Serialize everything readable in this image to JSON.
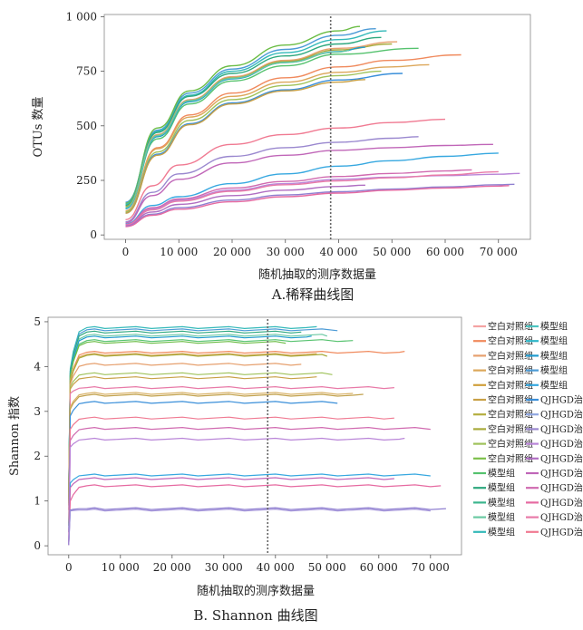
{
  "chart_data": [
    {
      "type": "line",
      "title": "",
      "caption": "A.稀释曲线图",
      "xlabel": "随机抽取的测序数据量",
      "ylabel": "OTUs 数量",
      "xlim": [
        -4000,
        76000
      ],
      "ylim": [
        -20,
        1010
      ],
      "xticks": [
        0,
        10000,
        20000,
        30000,
        40000,
        50000,
        60000,
        70000
      ],
      "xtick_labels": [
        "0",
        "10 000",
        "20 000",
        "30 000",
        "40 000",
        "50 000",
        "60 000",
        "70 000"
      ],
      "yticks": [
        0,
        250,
        500,
        750,
        1000
      ],
      "ytick_labels": [
        "0",
        "250",
        "500",
        "750",
        "1 000"
      ],
      "grid": false,
      "legend": "none",
      "vline": 38500,
      "series": [
        {
          "color": "#4c9bd6",
          "x": [
            0,
            6000,
            12000,
            20000,
            30000,
            40000,
            47000
          ],
          "y": [
            150,
            480,
            650,
            760,
            850,
            915,
            945
          ]
        },
        {
          "color": "#6bbd45",
          "x": [
            0,
            6000,
            12000,
            20000,
            30000,
            40000,
            44000
          ],
          "y": [
            145,
            490,
            660,
            775,
            870,
            935,
            955
          ]
        },
        {
          "color": "#34b9b9",
          "x": [
            0,
            6000,
            12000,
            20000,
            30000,
            40000,
            49000
          ],
          "y": [
            140,
            475,
            640,
            750,
            835,
            895,
            935
          ]
        },
        {
          "color": "#2ea87e",
          "x": [
            0,
            6000,
            12000,
            20000,
            30000,
            40000,
            48000
          ],
          "y": [
            135,
            470,
            635,
            740,
            820,
            875,
            905
          ]
        },
        {
          "color": "#e6a06e",
          "x": [
            0,
            6000,
            12000,
            20000,
            30000,
            40000,
            51000
          ],
          "y": [
            130,
            460,
            620,
            725,
            800,
            855,
            885
          ]
        },
        {
          "color": "#a8ab3c",
          "x": [
            0,
            6000,
            12000,
            20000,
            30000,
            40000,
            50000
          ],
          "y": [
            130,
            455,
            615,
            720,
            795,
            848,
            875
          ]
        },
        {
          "color": "#55c26e",
          "x": [
            0,
            6000,
            12000,
            20000,
            30000,
            40000,
            55000
          ],
          "y": [
            125,
            440,
            600,
            705,
            775,
            828,
            855
          ]
        },
        {
          "color": "#1f9bcf",
          "x": [
            0,
            6000,
            12000,
            20000,
            30000,
            40000,
            45000
          ],
          "y": [
            120,
            450,
            610,
            715,
            790,
            840,
            860
          ]
        },
        {
          "color": "#6ac9a2",
          "x": [
            0,
            6000,
            12000,
            20000,
            30000,
            40000,
            42000
          ],
          "y": [
            125,
            455,
            615,
            718,
            790,
            838,
            845
          ]
        },
        {
          "color": "#f08a5d",
          "x": [
            0,
            6000,
            12000,
            20000,
            30000,
            40000,
            50000,
            63000
          ],
          "y": [
            110,
            400,
            550,
            650,
            720,
            770,
            800,
            825
          ]
        },
        {
          "color": "#dca75a",
          "x": [
            0,
            6000,
            12000,
            20000,
            30000,
            40000,
            50000,
            57000
          ],
          "y": [
            110,
            395,
            540,
            635,
            700,
            745,
            770,
            780
          ]
        },
        {
          "color": "#9fc25a",
          "x": [
            0,
            6000,
            12000,
            20000,
            30000,
            40000,
            48000
          ],
          "y": [
            105,
            380,
            525,
            620,
            685,
            730,
            750
          ]
        },
        {
          "color": "#3a8fd9",
          "x": [
            0,
            6000,
            12000,
            20000,
            30000,
            40000,
            52000
          ],
          "y": [
            100,
            370,
            510,
            605,
            665,
            710,
            740
          ]
        },
        {
          "color": "#c8a046",
          "x": [
            0,
            6000,
            12000,
            20000,
            30000,
            40000,
            45000
          ],
          "y": [
            100,
            365,
            505,
            600,
            660,
            700,
            712
          ]
        },
        {
          "color": "#f07a92",
          "x": [
            0,
            5000,
            10000,
            20000,
            30000,
            40000,
            50000,
            60000
          ],
          "y": [
            70,
            225,
            320,
            415,
            460,
            490,
            515,
            530
          ]
        },
        {
          "color": "#9a88cf",
          "x": [
            0,
            5000,
            10000,
            20000,
            30000,
            40000,
            50000,
            55000
          ],
          "y": [
            60,
            195,
            280,
            360,
            400,
            425,
            443,
            450
          ]
        },
        {
          "color": "#c066b8",
          "x": [
            0,
            5000,
            10000,
            20000,
            30000,
            40000,
            50000,
            60000,
            69000
          ],
          "y": [
            55,
            180,
            255,
            330,
            365,
            388,
            400,
            410,
            415
          ]
        },
        {
          "color": "#37a8e0",
          "x": [
            0,
            5000,
            10000,
            20000,
            30000,
            40000,
            50000,
            60000,
            70000
          ],
          "y": [
            50,
            135,
            175,
            235,
            280,
            315,
            340,
            360,
            375
          ]
        },
        {
          "color": "#b985d8",
          "x": [
            0,
            5000,
            10000,
            20000,
            30000,
            40000,
            50000,
            60000,
            70000,
            74000
          ],
          "y": [
            45,
            120,
            160,
            205,
            235,
            255,
            265,
            272,
            278,
            282
          ]
        },
        {
          "color": "#d06ab0",
          "x": [
            0,
            5000,
            10000,
            20000,
            30000,
            40000,
            50000,
            60000,
            65000
          ],
          "y": [
            48,
            125,
            165,
            215,
            245,
            268,
            282,
            293,
            298
          ]
        },
        {
          "color": "#e87aa8",
          "x": [
            0,
            5000,
            10000,
            20000,
            30000,
            40000,
            50000,
            60000,
            70000
          ],
          "y": [
            45,
            115,
            155,
            200,
            230,
            248,
            262,
            275,
            290
          ]
        },
        {
          "color": "#8f7fd0",
          "x": [
            0,
            5000,
            10000,
            20000,
            30000,
            40000,
            50000,
            60000,
            70000,
            73000
          ],
          "y": [
            40,
            95,
            125,
            160,
            183,
            198,
            210,
            220,
            230,
            232
          ]
        },
        {
          "color": "#e66aa1",
          "x": [
            0,
            5000,
            10000,
            20000,
            30000,
            40000,
            50000,
            60000,
            70000,
            72000
          ],
          "y": [
            38,
            90,
            118,
            152,
            175,
            192,
            205,
            215,
            224,
            226
          ]
        },
        {
          "color": "#b06ec2",
          "x": [
            0,
            5000,
            10000,
            20000,
            30000,
            40000,
            45000
          ],
          "y": [
            42,
            105,
            140,
            180,
            205,
            222,
            228
          ]
        }
      ]
    },
    {
      "type": "line",
      "title": "",
      "caption": "B. Shannon 曲线图",
      "xlabel": "随机抽取的测序数据量",
      "ylabel": "Shannon 指数",
      "xlim": [
        -4000,
        76000
      ],
      "ylim": [
        -0.2,
        5.1
      ],
      "xticks": [
        0,
        10000,
        20000,
        30000,
        40000,
        50000,
        60000,
        70000
      ],
      "xtick_labels": [
        "0",
        "10 000",
        "20 000",
        "30 000",
        "40 000",
        "50 000",
        "60 000",
        "70 000"
      ],
      "yticks": [
        0,
        1,
        2,
        3,
        4,
        5
      ],
      "ytick_labels": [
        "0",
        "1",
        "2",
        "3",
        "4",
        "5"
      ],
      "grid": false,
      "legend": "right",
      "vline": 38500,
      "series": [
        {
          "color": "#34b9b9",
          "start": 3.95,
          "plateau": 4.87,
          "xmax": 48000
        },
        {
          "color": "#4c9bd6",
          "start": 3.9,
          "plateau": 4.82,
          "xmax": 52000
        },
        {
          "color": "#2ea87e",
          "start": 3.9,
          "plateau": 4.77,
          "xmax": 45000
        },
        {
          "color": "#6ac9a2",
          "start": 3.85,
          "plateau": 4.7,
          "xmax": 50000
        },
        {
          "color": "#1f9bcf",
          "start": 3.85,
          "plateau": 4.66,
          "xmax": 47000
        },
        {
          "color": "#55c26e",
          "start": 3.8,
          "plateau": 4.58,
          "xmax": 55000
        },
        {
          "color": "#6bbd45",
          "start": 3.8,
          "plateau": 4.54,
          "xmax": 42000
        },
        {
          "color": "#f08a5d",
          "start": 3.7,
          "plateau": 4.32,
          "xmax": 65000
        },
        {
          "color": "#dca75a",
          "start": 3.7,
          "plateau": 4.27,
          "xmax": 48000
        },
        {
          "color": "#a8ab3c",
          "start": 3.65,
          "plateau": 4.25,
          "xmax": 50000
        },
        {
          "color": "#e6a06e",
          "start": 3.6,
          "plateau": 4.05,
          "xmax": 45000
        },
        {
          "color": "#9fc25a",
          "start": 3.55,
          "plateau": 3.84,
          "xmax": 51000
        },
        {
          "color": "#c8a046",
          "start": 3.5,
          "plateau": 3.75,
          "xmax": 48000
        },
        {
          "color": "#e87aa8",
          "start": 3.4,
          "plateau": 3.53,
          "xmax": 63000
        },
        {
          "color": "#d9b36a",
          "start": 3.1,
          "plateau": 3.4,
          "xmax": 55000
        },
        {
          "color": "#c2a24e",
          "start": 3.05,
          "plateau": 3.36,
          "xmax": 57000
        },
        {
          "color": "#3a8fd9",
          "start": 2.9,
          "plateau": 3.2,
          "xmax": 52000
        },
        {
          "color": "#f07a92",
          "start": 2.6,
          "plateau": 2.85,
          "xmax": 63000
        },
        {
          "color": "#d06ab0",
          "start": 2.35,
          "plateau": 2.62,
          "xmax": 70000
        },
        {
          "color": "#b985d8",
          "start": 2.2,
          "plateau": 2.38,
          "xmax": 65000
        },
        {
          "color": "#37a8e0",
          "start": 1.4,
          "plateau": 1.58,
          "xmax": 70000
        },
        {
          "color": "#c066b8",
          "start": 1.3,
          "plateau": 1.5,
          "xmax": 63000
        },
        {
          "color": "#e66aa1",
          "start": 1.0,
          "plateau": 1.34,
          "xmax": 72000
        },
        {
          "color": "#8f7fd0",
          "start": 0.8,
          "plateau": 0.83,
          "xmax": 73000
        },
        {
          "color": "#a090d8",
          "start": 0.78,
          "plateau": 0.8,
          "xmax": 70000
        }
      ],
      "legend_entries": [
        {
          "label": "空白对照组",
          "color": "#f4a3a3"
        },
        {
          "label": "空白对照组",
          "color": "#f08a5d"
        },
        {
          "label": "空白对照组",
          "color": "#e6a06e"
        },
        {
          "label": "空白对照组",
          "color": "#dca75a"
        },
        {
          "label": "空白对照组",
          "color": "#d0a03c"
        },
        {
          "label": "空白对照组",
          "color": "#c8a046"
        },
        {
          "label": "空白对照组",
          "color": "#b5ae3e"
        },
        {
          "label": "空白对照组",
          "color": "#a8ab3c"
        },
        {
          "label": "空白对照组",
          "color": "#9fc25a"
        },
        {
          "label": "空白对照组",
          "color": "#7cbf4a"
        },
        {
          "label": "模型组",
          "color": "#55c26e"
        },
        {
          "label": "模型组",
          "color": "#2ea87e"
        },
        {
          "label": "模型组",
          "color": "#3bb58d"
        },
        {
          "label": "模型组",
          "color": "#6ac9a2"
        },
        {
          "label": "模型组",
          "color": "#34b9b9"
        },
        {
          "label": "模型组",
          "color": "#4bc4c0"
        },
        {
          "label": "模型组",
          "color": "#2fb6c8"
        },
        {
          "label": "模型组",
          "color": "#1f9bcf"
        },
        {
          "label": "模型组",
          "color": "#4c9bd6"
        },
        {
          "label": "模型组",
          "color": "#37a8e0"
        },
        {
          "label": "QJHGD治疗组",
          "color": "#3a8fd9"
        },
        {
          "label": "QJHGD治疗组",
          "color": "#8fa6e0"
        },
        {
          "label": "QJHGD治疗组",
          "color": "#9a88cf"
        },
        {
          "label": "QJHGD治疗组",
          "color": "#b985d8"
        },
        {
          "label": "QJHGD治疗组",
          "color": "#b06ec2"
        },
        {
          "label": "QJHGD治疗组",
          "color": "#c066b8"
        },
        {
          "label": "QJHGD治疗组",
          "color": "#d06ab0"
        },
        {
          "label": "QJHGD治疗组",
          "color": "#e66aa1"
        },
        {
          "label": "QJHGD治疗组",
          "color": "#e87aa8"
        },
        {
          "label": "QJHGD治疗组",
          "color": "#f07a92"
        }
      ]
    }
  ]
}
